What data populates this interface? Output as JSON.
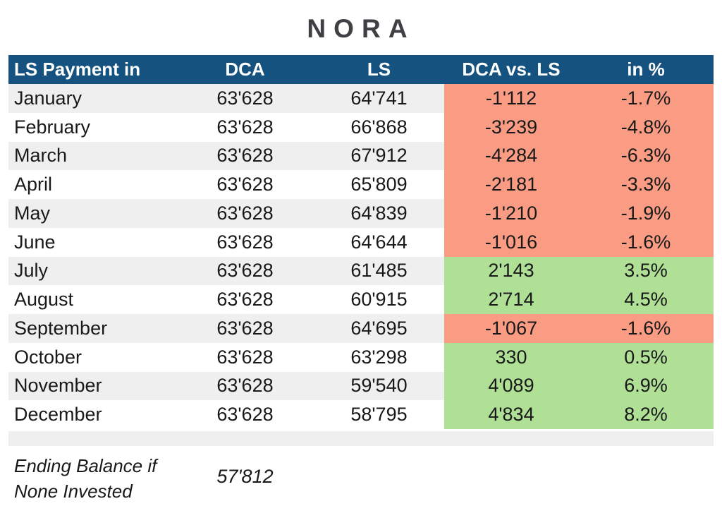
{
  "title": "NORA",
  "colors": {
    "header_bg": "#15527F",
    "negative_bg": "#F99C83",
    "positive_bg": "#AFE096",
    "alt_row_bg": "#EFEFEF",
    "title_color": "#3F3F44",
    "text_color": "#191919"
  },
  "table": {
    "headers": [
      "LS Payment in",
      "DCA",
      "LS",
      "DCA vs. LS",
      "in %"
    ],
    "rows": [
      {
        "month": "January",
        "dca": "63'628",
        "ls": "64'741",
        "diff": "-1'112",
        "pct": "-1.7%",
        "sentiment": "negative"
      },
      {
        "month": "February",
        "dca": "63'628",
        "ls": "66'868",
        "diff": "-3'239",
        "pct": "-4.8%",
        "sentiment": "negative"
      },
      {
        "month": "March",
        "dca": "63'628",
        "ls": "67'912",
        "diff": "-4'284",
        "pct": "-6.3%",
        "sentiment": "negative"
      },
      {
        "month": "April",
        "dca": "63'628",
        "ls": "65'809",
        "diff": "-2'181",
        "pct": "-3.3%",
        "sentiment": "negative"
      },
      {
        "month": "May",
        "dca": "63'628",
        "ls": "64'839",
        "diff": "-1'210",
        "pct": "-1.9%",
        "sentiment": "negative"
      },
      {
        "month": "June",
        "dca": "63'628",
        "ls": "64'644",
        "diff": "-1'016",
        "pct": "-1.6%",
        "sentiment": "negative"
      },
      {
        "month": "July",
        "dca": "63'628",
        "ls": "61'485",
        "diff": "2'143",
        "pct": "3.5%",
        "sentiment": "positive"
      },
      {
        "month": "August",
        "dca": "63'628",
        "ls": "60'915",
        "diff": "2'714",
        "pct": "4.5%",
        "sentiment": "positive"
      },
      {
        "month": "September",
        "dca": "63'628",
        "ls": "64'695",
        "diff": "-1'067",
        "pct": "-1.6%",
        "sentiment": "negative"
      },
      {
        "month": "October",
        "dca": "63'628",
        "ls": "63'298",
        "diff": "330",
        "pct": "0.5%",
        "sentiment": "positive"
      },
      {
        "month": "November",
        "dca": "63'628",
        "ls": "59'540",
        "diff": "4'089",
        "pct": "6.9%",
        "sentiment": "positive"
      },
      {
        "month": "December",
        "dca": "63'628",
        "ls": "58'795",
        "diff": "4'834",
        "pct": "8.2%",
        "sentiment": "positive"
      }
    ]
  },
  "footer": {
    "label": "Ending Balance if None Invested",
    "value": "57'812"
  }
}
